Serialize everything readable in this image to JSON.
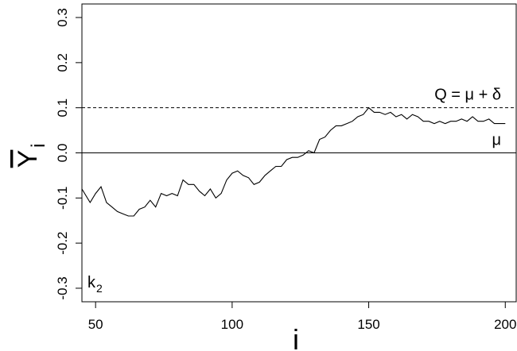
{
  "chart_data": {
    "type": "line",
    "x_label": "i",
    "y_label": "Y",
    "y_label_sub": "i",
    "panel_label": "k",
    "panel_label_sub": "2",
    "x": [
      45,
      48,
      50,
      52,
      54,
      56,
      58,
      60,
      62,
      64,
      66,
      68,
      70,
      72,
      74,
      76,
      78,
      80,
      82,
      84,
      86,
      88,
      90,
      92,
      94,
      96,
      98,
      100,
      102,
      104,
      106,
      108,
      110,
      112,
      114,
      116,
      118,
      120,
      122,
      124,
      126,
      128,
      130,
      132,
      134,
      136,
      138,
      140,
      142,
      144,
      146,
      148,
      150,
      152,
      154,
      156,
      158,
      160,
      162,
      164,
      166,
      168,
      170,
      172,
      174,
      176,
      178,
      180,
      182,
      184,
      186,
      188,
      190,
      192,
      194,
      196,
      198,
      200
    ],
    "series": [
      {
        "color": "#000000",
        "values": [
          -0.08,
          -0.11,
          -0.09,
          -0.075,
          -0.11,
          -0.12,
          -0.13,
          -0.135,
          -0.14,
          -0.14,
          -0.125,
          -0.12,
          -0.105,
          -0.12,
          -0.09,
          -0.095,
          -0.09,
          -0.095,
          -0.06,
          -0.07,
          -0.07,
          -0.085,
          -0.095,
          -0.08,
          -0.1,
          -0.09,
          -0.06,
          -0.045,
          -0.04,
          -0.05,
          -0.055,
          -0.07,
          -0.065,
          -0.05,
          -0.04,
          -0.03,
          -0.03,
          -0.015,
          -0.01,
          -0.01,
          -0.005,
          0.005,
          0.0,
          0.03,
          0.035,
          0.05,
          0.06,
          0.06,
          0.065,
          0.07,
          0.08,
          0.085,
          0.1,
          0.09,
          0.09,
          0.085,
          0.09,
          0.08,
          0.085,
          0.075,
          0.085,
          0.08,
          0.07,
          0.07,
          0.065,
          0.07,
          0.065,
          0.07,
          0.07,
          0.075,
          0.07,
          0.08,
          0.07,
          0.07,
          0.075,
          0.065,
          0.065,
          0.065
        ]
      }
    ],
    "hlines": [
      {
        "y": 0.1,
        "style": "dashed",
        "label": "Q = μ + δ"
      },
      {
        "y": 0,
        "style": "solid",
        "label": "μ"
      }
    ],
    "xlim": [
      45,
      204
    ],
    "xticks": [
      50,
      100,
      150,
      200
    ],
    "ylim": [
      -0.33,
      0.33
    ],
    "yticks": [
      -0.3,
      -0.2,
      -0.1,
      {
        "value": 0,
        "label": "0.0"
      },
      0.1,
      0.2,
      0.3
    ]
  }
}
